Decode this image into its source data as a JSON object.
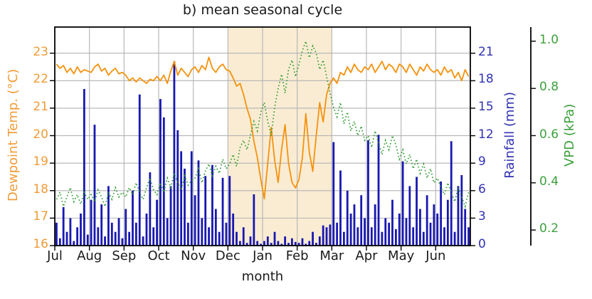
{
  "title": "b) mean seasonal cycle",
  "axes": {
    "x": {
      "label": "month",
      "tick_labels": [
        "Jul",
        "Aug",
        "Sep",
        "Oct",
        "Nov",
        "Dec",
        "Jan",
        "Feb",
        "Mar",
        "Apr",
        "May",
        "Jun"
      ],
      "color": "#1a1a1a"
    },
    "dewpoint": {
      "label": "Dewpoint Temp. (°C)",
      "tick_labels": [
        "16",
        "17",
        "18",
        "19",
        "20",
        "21",
        "22",
        "23"
      ],
      "tick_values": [
        16,
        17,
        18,
        19,
        20,
        21,
        22,
        23
      ],
      "range": [
        16,
        23.95
      ],
      "color": "#f09c38",
      "line_color": "#f5920e",
      "side": "left"
    },
    "rainfall": {
      "label": "Rainfall (mm)",
      "tick_labels": [
        "0",
        "3",
        "6",
        "9",
        "12",
        "15",
        "18",
        "21"
      ],
      "tick_values": [
        0,
        3,
        6,
        9,
        12,
        15,
        18,
        21
      ],
      "range": [
        0,
        23.86
      ],
      "color": "#3232b4",
      "bar_color": "#1818b0",
      "side": "right"
    },
    "vpd": {
      "label": "VPD (kPa)",
      "tick_labels": [
        "0.2",
        "0.4",
        "0.6",
        "0.8",
        "1.0"
      ],
      "tick_values": [
        0.2,
        0.4,
        0.6,
        0.8,
        1.0
      ],
      "range": [
        0.134,
        1.06
      ],
      "color": "#3da03d",
      "line_color": "#2e9b2e",
      "side": "right-offset"
    }
  },
  "shaded_region": {
    "from": "Dec",
    "to": "Mar",
    "color": "#faecd3"
  },
  "grid_color": "#b3b3b3",
  "spine_color": "#000000",
  "chart_data": {
    "type": "composite",
    "title": "b) mean seasonal cycle",
    "xlabel": "month",
    "categories": [
      "Jul",
      "Aug",
      "Sep",
      "Oct",
      "Nov",
      "Dec",
      "Jan",
      "Feb",
      "Mar",
      "Apr",
      "May",
      "Jun"
    ],
    "samples_per_month": 10,
    "note": "daily series Jul-Jun sampled ~every 3 days; dry season Dec-Mar shaded",
    "series": [
      {
        "name": "Rainfall (mm)",
        "type": "bar",
        "axis": "rainfall",
        "color": "#1818b0",
        "values": [
          2.5,
          0.8,
          4.2,
          1.5,
          3.0,
          0.5,
          2.0,
          3.5,
          17.1,
          1.2,
          5.0,
          13.2,
          2.0,
          4.5,
          1.0,
          6.5,
          2.5,
          1.5,
          3.0,
          0.8,
          4.0,
          1.5,
          6.0,
          2.5,
          16.5,
          1.0,
          3.5,
          8.0,
          2.0,
          5.0,
          16.0,
          14.0,
          3.0,
          6.5,
          20.1,
          12.6,
          10.3,
          8.4,
          2.5,
          10.3,
          5.5,
          9.3,
          3.0,
          7.6,
          2.0,
          8.8,
          4.0,
          1.5,
          7.4,
          2.5,
          7.6,
          3.5,
          1.5,
          0.5,
          2.0,
          0.3,
          1.0,
          5.6,
          0.5,
          0.2,
          0.5,
          1.0,
          0.3,
          1.5,
          0.5,
          0.2,
          1.0,
          0.3,
          0.8,
          0.4,
          0.3,
          0.8,
          0.2,
          0.5,
          1.5,
          0.3,
          1.0,
          2.2,
          2.0,
          2.3,
          11.3,
          2.5,
          8.2,
          1.5,
          6.0,
          3.5,
          4.5,
          2.0,
          5.5,
          3.0,
          11.5,
          2.0,
          4.5,
          12.1,
          1.5,
          3.0,
          2.5,
          5.0,
          1.8,
          3.5,
          9.2,
          3.0,
          6.5,
          2.0,
          7.5,
          4.0,
          1.5,
          5.5,
          2.5,
          4.5,
          3.5,
          7.0,
          2.0,
          5.0,
          11.4,
          1.5,
          6.5,
          7.7,
          4.0,
          2.0
        ]
      },
      {
        "name": "Dewpoint Temp. (°C)",
        "type": "line",
        "axis": "dewpoint",
        "color": "#f5920e",
        "values": [
          22.6,
          22.45,
          22.55,
          22.3,
          22.45,
          22.25,
          22.5,
          22.3,
          22.4,
          22.35,
          22.3,
          22.5,
          22.6,
          22.35,
          22.45,
          22.2,
          22.35,
          22.45,
          22.25,
          22.3,
          22.2,
          22.0,
          22.1,
          21.95,
          22.1,
          22.0,
          21.9,
          22.05,
          22.0,
          22.15,
          22.0,
          22.2,
          21.9,
          22.35,
          22.7,
          22.2,
          22.45,
          22.3,
          22.15,
          22.4,
          22.5,
          22.3,
          22.55,
          22.4,
          22.85,
          22.45,
          22.3,
          22.5,
          22.6,
          22.4,
          22.35,
          22.1,
          21.8,
          21.9,
          21.5,
          21.0,
          20.6,
          19.8,
          19.2,
          18.4,
          17.7,
          19.0,
          20.3,
          19.1,
          18.3,
          19.5,
          20.4,
          19.0,
          18.3,
          18.1,
          18.4,
          19.2,
          20.8,
          19.4,
          18.7,
          20.0,
          21.2,
          20.5,
          21.5,
          21.9,
          22.1,
          21.9,
          22.3,
          22.2,
          22.5,
          22.3,
          22.6,
          22.4,
          22.3,
          22.5,
          22.4,
          22.6,
          22.3,
          22.5,
          22.7,
          22.4,
          22.6,
          22.5,
          22.3,
          22.6,
          22.5,
          22.3,
          22.6,
          22.4,
          22.2,
          22.5,
          22.35,
          22.6,
          22.4,
          22.3,
          22.4,
          22.2,
          22.5,
          22.3,
          22.4,
          22.1,
          22.3,
          22.0,
          22.4,
          22.15
        ]
      },
      {
        "name": "VPD (kPa)",
        "type": "line",
        "style": "dotted",
        "axis": "vpd",
        "color": "#2e9b2e",
        "values": [
          0.33,
          0.36,
          0.3,
          0.34,
          0.38,
          0.32,
          0.35,
          0.31,
          0.36,
          0.33,
          0.35,
          0.32,
          0.37,
          0.34,
          0.3,
          0.36,
          0.33,
          0.38,
          0.34,
          0.36,
          0.34,
          0.38,
          0.35,
          0.4,
          0.36,
          0.33,
          0.38,
          0.42,
          0.37,
          0.35,
          0.4,
          0.36,
          0.42,
          0.38,
          0.44,
          0.4,
          0.37,
          0.43,
          0.39,
          0.41,
          0.42,
          0.46,
          0.4,
          0.45,
          0.48,
          0.43,
          0.47,
          0.44,
          0.5,
          0.46,
          0.48,
          0.52,
          0.47,
          0.55,
          0.58,
          0.54,
          0.6,
          0.66,
          0.62,
          0.7,
          0.74,
          0.66,
          0.6,
          0.72,
          0.8,
          0.86,
          0.78,
          0.88,
          0.92,
          0.85,
          0.9,
          0.96,
          1.0,
          0.93,
          0.98,
          0.95,
          0.88,
          0.92,
          0.85,
          0.78,
          0.72,
          0.68,
          0.74,
          0.65,
          0.7,
          0.62,
          0.66,
          0.6,
          0.64,
          0.58,
          0.6,
          0.55,
          0.62,
          0.57,
          0.52,
          0.58,
          0.54,
          0.6,
          0.56,
          0.5,
          0.54,
          0.48,
          0.52,
          0.46,
          0.5,
          0.44,
          0.48,
          0.42,
          0.46,
          0.4,
          0.42,
          0.38,
          0.35,
          0.4,
          0.36,
          0.32,
          0.38,
          0.34,
          0.3,
          0.36
        ]
      }
    ]
  }
}
